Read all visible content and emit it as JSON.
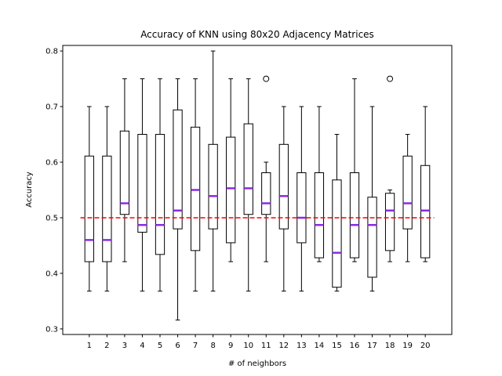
{
  "chart_data": {
    "type": "boxplot",
    "title": "Accuracy of KNN using 80x20 Adjacency Matrices",
    "xlabel": "# of neighbors",
    "ylabel": "Accuracy",
    "categories": [
      "1",
      "2",
      "3",
      "4",
      "5",
      "6",
      "7",
      "8",
      "9",
      "10",
      "11",
      "12",
      "13",
      "14",
      "15",
      "16",
      "17",
      "18",
      "19",
      "20"
    ],
    "ylim": [
      0.29,
      0.81
    ],
    "yticks": [
      0.3,
      0.4,
      0.5,
      0.6,
      0.7,
      0.8
    ],
    "ytick_labels": [
      "0.3",
      "0.4",
      "0.5",
      "0.6",
      "0.7",
      "0.8"
    ],
    "reference_line": {
      "y": 0.5,
      "style": "dashed",
      "color": "#ff0000"
    },
    "median_color": "#8a2be2",
    "box_color": "#000000",
    "boxes": [
      {
        "label": "1",
        "whislo": 0.368,
        "q1": 0.421,
        "med": 0.46,
        "q3": 0.611,
        "whishi": 0.7,
        "fliers": []
      },
      {
        "label": "2",
        "whislo": 0.368,
        "q1": 0.421,
        "med": 0.46,
        "q3": 0.611,
        "whishi": 0.7,
        "fliers": []
      },
      {
        "label": "3",
        "whislo": 0.421,
        "q1": 0.506,
        "med": 0.526,
        "q3": 0.656,
        "whishi": 0.75,
        "fliers": []
      },
      {
        "label": "4",
        "whislo": 0.368,
        "q1": 0.474,
        "med": 0.487,
        "q3": 0.65,
        "whishi": 0.75,
        "fliers": []
      },
      {
        "label": "5",
        "whislo": 0.368,
        "q1": 0.434,
        "med": 0.487,
        "q3": 0.65,
        "whishi": 0.75,
        "fliers": []
      },
      {
        "label": "6",
        "whislo": 0.316,
        "q1": 0.48,
        "med": 0.513,
        "q3": 0.694,
        "whishi": 0.75,
        "fliers": []
      },
      {
        "label": "7",
        "whislo": 0.368,
        "q1": 0.441,
        "med": 0.55,
        "q3": 0.663,
        "whishi": 0.75,
        "fliers": []
      },
      {
        "label": "8",
        "whislo": 0.368,
        "q1": 0.48,
        "med": 0.539,
        "q3": 0.632,
        "whishi": 0.8,
        "fliers": []
      },
      {
        "label": "9",
        "whislo": 0.421,
        "q1": 0.455,
        "med": 0.553,
        "q3": 0.645,
        "whishi": 0.75,
        "fliers": []
      },
      {
        "label": "10",
        "whislo": 0.368,
        "q1": 0.506,
        "med": 0.553,
        "q3": 0.669,
        "whishi": 0.75,
        "fliers": []
      },
      {
        "label": "11",
        "whislo": 0.421,
        "q1": 0.506,
        "med": 0.526,
        "q3": 0.581,
        "whishi": 0.6,
        "fliers": [
          0.75
        ]
      },
      {
        "label": "12",
        "whislo": 0.368,
        "q1": 0.48,
        "med": 0.539,
        "q3": 0.632,
        "whishi": 0.7,
        "fliers": []
      },
      {
        "label": "13",
        "whislo": 0.368,
        "q1": 0.455,
        "med": 0.5,
        "q3": 0.581,
        "whishi": 0.7,
        "fliers": []
      },
      {
        "label": "14",
        "whislo": 0.421,
        "q1": 0.428,
        "med": 0.487,
        "q3": 0.581,
        "whishi": 0.7,
        "fliers": []
      },
      {
        "label": "15",
        "whislo": 0.368,
        "q1": 0.375,
        "med": 0.437,
        "q3": 0.568,
        "whishi": 0.65,
        "fliers": []
      },
      {
        "label": "16",
        "whislo": 0.421,
        "q1": 0.428,
        "med": 0.487,
        "q3": 0.581,
        "whishi": 0.75,
        "fliers": []
      },
      {
        "label": "17",
        "whislo": 0.368,
        "q1": 0.393,
        "med": 0.487,
        "q3": 0.537,
        "whishi": 0.7,
        "fliers": []
      },
      {
        "label": "18",
        "whislo": 0.421,
        "q1": 0.441,
        "med": 0.513,
        "q3": 0.544,
        "whishi": 0.55,
        "fliers": [
          0.75
        ]
      },
      {
        "label": "19",
        "whislo": 0.421,
        "q1": 0.48,
        "med": 0.526,
        "q3": 0.611,
        "whishi": 0.65,
        "fliers": []
      },
      {
        "label": "20",
        "whislo": 0.421,
        "q1": 0.428,
        "med": 0.513,
        "q3": 0.594,
        "whishi": 0.7,
        "fliers": []
      }
    ]
  }
}
